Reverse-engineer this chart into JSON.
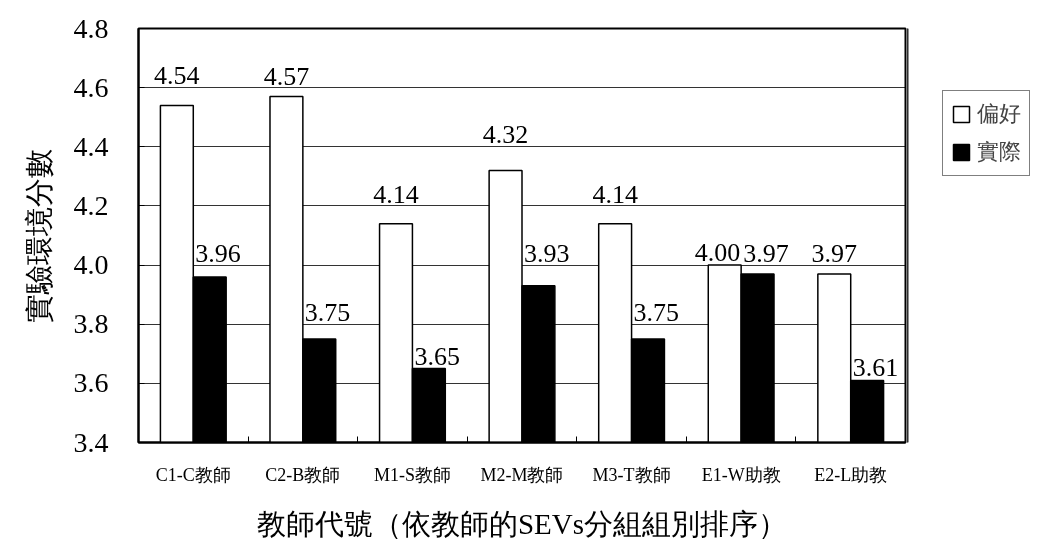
{
  "chart_data": {
    "type": "bar",
    "xlabel": "教師代號（依教師的SEVs分組組別排序）",
    "ylabel": "實驗環境分數",
    "categories": [
      "C1-C教師",
      "C2-B教師",
      "M1-S教師",
      "M2-M教師",
      "M3-T教師",
      "E1-W助教",
      "E2-L助教"
    ],
    "series": [
      {
        "name": "偏好",
        "color": "#ffffff",
        "values": [
          4.54,
          4.57,
          4.14,
          4.32,
          4.14,
          4.0,
          3.97
        ],
        "value_labels": [
          "4.54",
          "4.57",
          "4.14",
          "4.32",
          "4.14",
          "4.00",
          "3.97"
        ]
      },
      {
        "name": "實際",
        "color": "#000000",
        "values": [
          3.96,
          3.75,
          3.65,
          3.93,
          3.75,
          3.97,
          3.61
        ],
        "value_labels": [
          "3.96",
          "3.75",
          "3.65",
          "3.93",
          "3.75",
          "3.97",
          "3.61"
        ]
      }
    ],
    "ylim": [
      3.4,
      4.8
    ],
    "yticks": [
      3.4,
      3.6,
      3.8,
      {
        "value": 4,
        "label": "4.0"
      },
      4.2,
      4.4,
      4.6,
      4.8
    ],
    "grid": "y",
    "legend": "right"
  }
}
